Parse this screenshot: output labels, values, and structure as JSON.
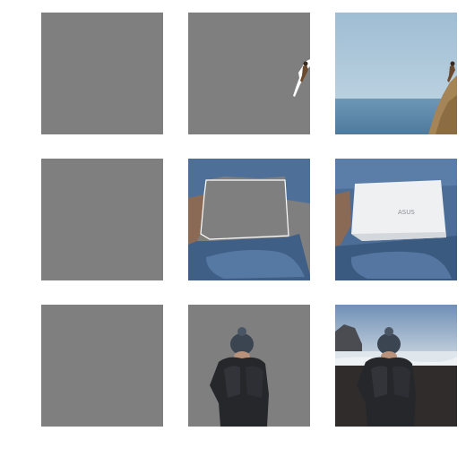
{
  "figure": {
    "rows": [
      {
        "subject": "cliff-climber",
        "columns": [
          "empty-mask",
          "segmented-object",
          "original-photo"
        ]
      },
      {
        "subject": "laptop-on-lap",
        "columns": [
          "empty-mask",
          "segmented-object",
          "original-photo"
        ]
      },
      {
        "subject": "person-in-beanie-on-beach",
        "columns": [
          "empty-mask",
          "segmented-object",
          "original-photo"
        ]
      }
    ],
    "laptop_logo_text": "ASUS",
    "colors": {
      "mask_gray": "#7f7f7f",
      "sky": "#a9c3d6",
      "sea": "#5f88a8",
      "denim": "#3f5f86",
      "jacket": "#2a2a2e",
      "laptop": "#eef0f2",
      "beach_sand": "#2f2c2b"
    }
  }
}
